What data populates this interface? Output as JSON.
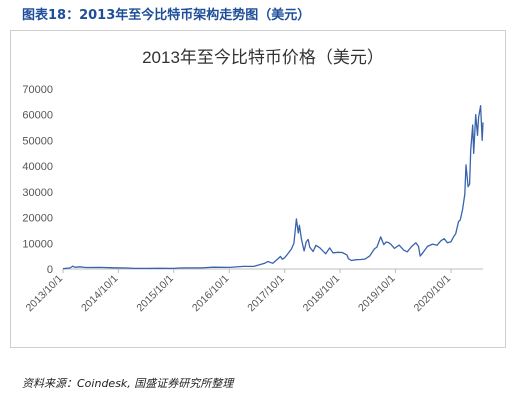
{
  "figure_caption": "图表18：2013年至今比特币架构走势图（美元）",
  "source_note": "资料来源：Coindesk, 国盛证券研究所整理",
  "colors": {
    "line": "#3a63ad",
    "caption": "#1f4e99",
    "axis": "#bdbdbd",
    "text": "#555555"
  },
  "chart_data": {
    "type": "line",
    "title": "2013年至今比特币价格（美元）",
    "xlabel": "",
    "ylabel": "",
    "ylim": [
      0,
      70000
    ],
    "yticks": [
      0,
      10000,
      20000,
      30000,
      40000,
      50000,
      60000,
      70000
    ],
    "ytick_labels": [
      "0",
      "10000",
      "20000",
      "30000",
      "40000",
      "50000",
      "60000",
      "70000"
    ],
    "xlim": [
      "2013-10-01",
      "2021-04-30"
    ],
    "xticks": [
      "2013-10-01",
      "2014-10-01",
      "2015-10-01",
      "2016-10-01",
      "2017-10-01",
      "2018-10-01",
      "2019-10-01",
      "2020-10-01"
    ],
    "xtick_labels": [
      "2013/10/1",
      "2014/10/1",
      "2015/10/1",
      "2016/10/1",
      "2017/10/1",
      "2018/10/1",
      "2019/10/1",
      "2020/10/1"
    ],
    "grid": false,
    "legend": "none",
    "series": [
      {
        "x": [
          "2013-10-01",
          "2013-11-15",
          "2013-12-05",
          "2013-12-20",
          "2014-01-20",
          "2014-03-01",
          "2014-06-01",
          "2014-09-01",
          "2014-12-01",
          "2015-01-15",
          "2015-04-01",
          "2015-07-01",
          "2015-10-01",
          "2015-11-05",
          "2016-01-01",
          "2016-04-01",
          "2016-06-18",
          "2016-10-01",
          "2017-01-01",
          "2017-03-15",
          "2017-05-25",
          "2017-06-12",
          "2017-07-15",
          "2017-08-20",
          "2017-09-03",
          "2017-09-15",
          "2017-10-01",
          "2017-10-20",
          "2017-11-15",
          "2017-12-01",
          "2017-12-17",
          "2017-12-30",
          "2018-01-06",
          "2018-01-20",
          "2018-02-06",
          "2018-02-20",
          "2018-03-05",
          "2018-03-15",
          "2018-04-06",
          "2018-04-25",
          "2018-05-20",
          "2018-06-28",
          "2018-07-25",
          "2018-08-15",
          "2018-09-20",
          "2018-10-15",
          "2018-11-15",
          "2018-11-25",
          "2018-12-15",
          "2019-01-15",
          "2019-02-15",
          "2019-03-15",
          "2019-04-15",
          "2019-05-15",
          "2019-06-01",
          "2019-06-26",
          "2019-07-16",
          "2019-08-01",
          "2019-08-15",
          "2019-09-01",
          "2019-09-25",
          "2019-10-25",
          "2019-11-25",
          "2019-12-18",
          "2020-01-15",
          "2020-02-13",
          "2020-03-01",
          "2020-03-12",
          "2020-04-01",
          "2020-04-29",
          "2020-06-01",
          "2020-07-01",
          "2020-07-27",
          "2020-08-17",
          "2020-09-08",
          "2020-10-01",
          "2020-10-21",
          "2020-11-01",
          "2020-11-20",
          "2020-12-01",
          "2020-12-16",
          "2020-12-31",
          "2021-01-08",
          "2021-01-22",
          "2021-02-01",
          "2021-02-08",
          "2021-02-21",
          "2021-02-28",
          "2021-03-13",
          "2021-03-25",
          "2021-04-01",
          "2021-04-14",
          "2021-04-25",
          "2021-04-30"
        ],
        "y": [
          130,
          400,
          1100,
          650,
          850,
          600,
          640,
          480,
          370,
          250,
          250,
          280,
          240,
          380,
          430,
          420,
          700,
          610,
          1000,
          1050,
          2300,
          2900,
          2200,
          4100,
          4900,
          3800,
          4400,
          5800,
          7800,
          10000,
          19500,
          14000,
          17000,
          11500,
          7000,
          10500,
          11500,
          8500,
          6800,
          9200,
          8300,
          5900,
          8200,
          6300,
          6500,
          6400,
          5500,
          4000,
          3300,
          3600,
          3700,
          3900,
          5100,
          7800,
          8500,
          12500,
          9500,
          10500,
          10300,
          9600,
          8000,
          9300,
          7300,
          6700,
          8700,
          10200,
          8800,
          5000,
          6500,
          8800,
          9700,
          9200,
          11000,
          11800,
          10200,
          10600,
          12800,
          13700,
          18500,
          19000,
          23000,
          29000,
          40500,
          32000,
          33000,
          46000,
          56000,
          45000,
          60000,
          52000,
          59000,
          63500,
          50000,
          57000
        ]
      }
    ]
  }
}
